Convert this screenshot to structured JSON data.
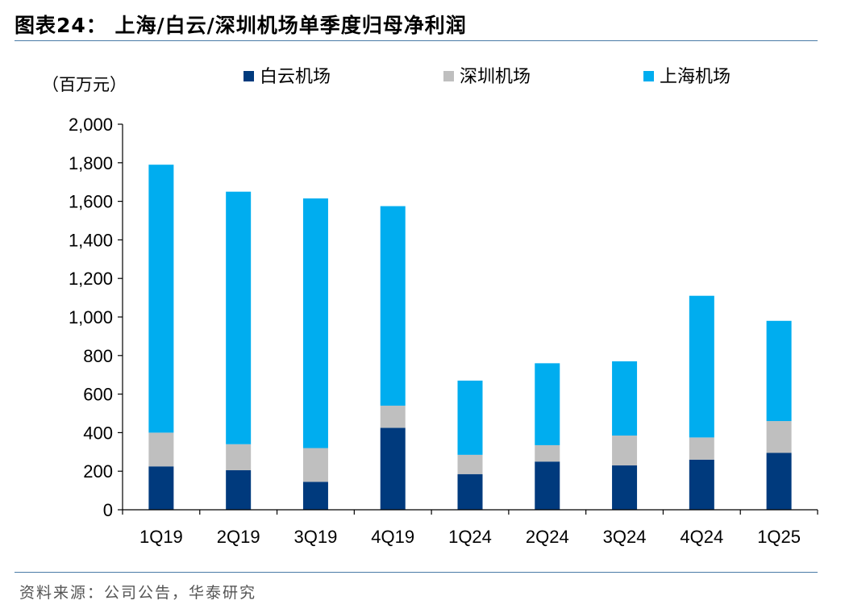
{
  "header": {
    "title": "图表24：  上海/白云/深圳机场单季度归母净利润"
  },
  "footer": {
    "source": "资料来源：公司公告，华泰研究"
  },
  "chart_data": {
    "type": "bar",
    "stacked": true,
    "unit_label": "（百万元）",
    "categories": [
      "1Q19",
      "2Q19",
      "3Q19",
      "4Q19",
      "1Q24",
      "2Q24",
      "3Q24",
      "4Q24",
      "1Q25"
    ],
    "series": [
      {
        "name": "白云机场",
        "color": "#003a7d",
        "values": [
          225,
          205,
          145,
          425,
          185,
          250,
          230,
          260,
          295
        ]
      },
      {
        "name": "深圳机场",
        "color": "#bfbfbf",
        "values": [
          175,
          135,
          175,
          115,
          100,
          85,
          155,
          115,
          165
        ]
      },
      {
        "name": "上海机场",
        "color": "#00adef",
        "values": [
          1390,
          1310,
          1295,
          1035,
          385,
          425,
          385,
          735,
          520
        ]
      }
    ],
    "ylim": [
      0,
      2000
    ],
    "yticks": [
      0,
      200,
      400,
      600,
      800,
      1000,
      1200,
      1400,
      1600,
      1800,
      2000
    ],
    "ytick_labels": [
      "0",
      "200",
      "400",
      "600",
      "800",
      "1,000",
      "1,200",
      "1,400",
      "1,600",
      "1,800",
      "2,000"
    ],
    "legend_position": "top",
    "grid": false
  }
}
